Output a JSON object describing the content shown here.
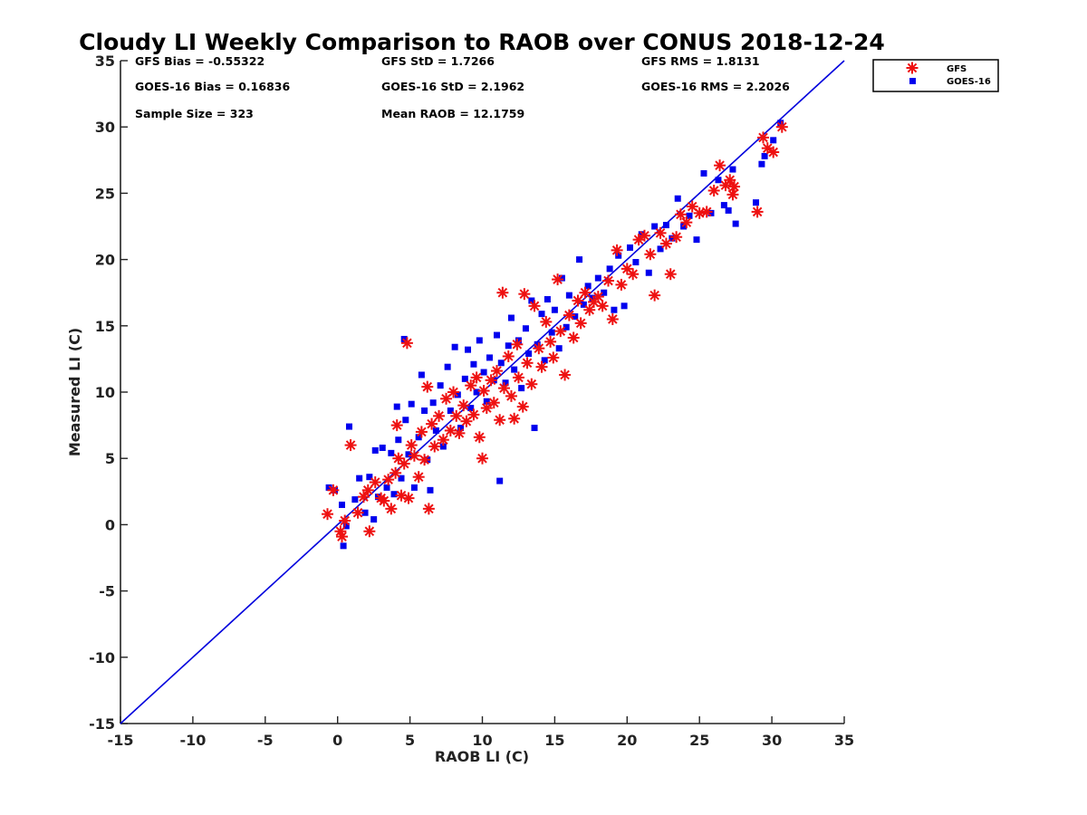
{
  "chart_data": {
    "type": "scatter",
    "title": "Cloudy LI Weekly Comparison to RAOB over CONUS 2018-12-24",
    "xlabel": "RAOB LI (C)",
    "ylabel": "Measured LI (C)",
    "xlim": [
      -15,
      35
    ],
    "ylim": [
      -15,
      35
    ],
    "xticks": [
      "-15",
      "-10",
      "-5",
      "0",
      "5",
      "10",
      "15",
      "20",
      "25",
      "30",
      "35"
    ],
    "yticks": [
      "-15",
      "-10",
      "-5",
      "0",
      "5",
      "10",
      "15",
      "20",
      "25",
      "30",
      "35"
    ],
    "grid": false,
    "legend_position": "outside-top-right",
    "reference_line": {
      "x": [
        -15,
        35
      ],
      "y": [
        -15,
        35
      ],
      "color": "#0000dd"
    },
    "stats": {
      "gfs_bias": "GFS Bias = -0.55322",
      "goes_bias": "GOES-16 Bias = 0.16836",
      "sample_size": "Sample Size = 323",
      "gfs_std": "GFS StD = 1.7266",
      "goes_std": "GOES-16 StD = 2.1962",
      "mean_raob": "Mean RAOB = 12.1759",
      "gfs_rms": "GFS RMS = 1.8131",
      "goes_rms": "GOES-16 RMS = 2.2026"
    },
    "series": [
      {
        "name": "GFS",
        "marker": "asterisk",
        "color": "#ee1111",
        "points": [
          [
            -0.7,
            0.8
          ],
          [
            -0.3,
            2.6
          ],
          [
            0.2,
            -0.5
          ],
          [
            0.3,
            -0.9
          ],
          [
            0.5,
            0.3
          ],
          [
            0.9,
            6.0
          ],
          [
            1.4,
            0.9
          ],
          [
            1.8,
            2.1
          ],
          [
            2.1,
            2.6
          ],
          [
            2.2,
            -0.5
          ],
          [
            2.6,
            3.2
          ],
          [
            3.0,
            2.0
          ],
          [
            3.2,
            1.8
          ],
          [
            3.5,
            3.4
          ],
          [
            3.7,
            1.2
          ],
          [
            4.0,
            3.9
          ],
          [
            4.1,
            7.5
          ],
          [
            4.2,
            5.0
          ],
          [
            4.4,
            2.2
          ],
          [
            4.6,
            4.6
          ],
          [
            4.8,
            13.7
          ],
          [
            4.9,
            2.0
          ],
          [
            5.1,
            6.0
          ],
          [
            5.3,
            5.2
          ],
          [
            5.6,
            3.6
          ],
          [
            5.8,
            7.0
          ],
          [
            6.0,
            4.9
          ],
          [
            6.2,
            10.4
          ],
          [
            6.3,
            1.2
          ],
          [
            6.5,
            7.6
          ],
          [
            6.7,
            5.9
          ],
          [
            7.0,
            8.2
          ],
          [
            7.3,
            6.4
          ],
          [
            7.5,
            9.5
          ],
          [
            7.8,
            7.1
          ],
          [
            8.0,
            10.0
          ],
          [
            8.2,
            8.2
          ],
          [
            8.4,
            6.9
          ],
          [
            8.7,
            9.0
          ],
          [
            8.9,
            7.8
          ],
          [
            9.2,
            10.5
          ],
          [
            9.4,
            8.3
          ],
          [
            9.6,
            11.1
          ],
          [
            9.8,
            6.6
          ],
          [
            10.0,
            5.0
          ],
          [
            10.1,
            10.1
          ],
          [
            10.3,
            8.8
          ],
          [
            10.6,
            10.9
          ],
          [
            10.8,
            9.2
          ],
          [
            11.0,
            11.6
          ],
          [
            11.2,
            7.9
          ],
          [
            11.4,
            17.5
          ],
          [
            11.5,
            10.3
          ],
          [
            11.8,
            12.7
          ],
          [
            12.0,
            9.7
          ],
          [
            12.2,
            8.0
          ],
          [
            12.4,
            13.6
          ],
          [
            12.5,
            11.1
          ],
          [
            12.8,
            8.9
          ],
          [
            12.9,
            17.4
          ],
          [
            13.1,
            12.2
          ],
          [
            13.4,
            10.6
          ],
          [
            13.6,
            16.5
          ],
          [
            13.9,
            13.3
          ],
          [
            14.1,
            11.9
          ],
          [
            14.4,
            15.3
          ],
          [
            14.7,
            13.8
          ],
          [
            14.9,
            12.6
          ],
          [
            15.2,
            18.5
          ],
          [
            15.4,
            14.6
          ],
          [
            15.7,
            11.3
          ],
          [
            16.0,
            15.8
          ],
          [
            16.3,
            14.1
          ],
          [
            16.6,
            16.9
          ],
          [
            16.8,
            15.2
          ],
          [
            17.1,
            17.5
          ],
          [
            17.4,
            16.2
          ],
          [
            17.7,
            16.8
          ],
          [
            18.0,
            17.2
          ],
          [
            18.3,
            16.5
          ],
          [
            18.7,
            18.4
          ],
          [
            19.0,
            15.5
          ],
          [
            19.3,
            20.7
          ],
          [
            19.6,
            18.1
          ],
          [
            20.0,
            19.3
          ],
          [
            20.4,
            18.9
          ],
          [
            20.8,
            21.5
          ],
          [
            21.2,
            21.8
          ],
          [
            21.6,
            20.4
          ],
          [
            21.9,
            17.3
          ],
          [
            22.3,
            22.0
          ],
          [
            22.7,
            21.2
          ],
          [
            23.0,
            18.9
          ],
          [
            23.4,
            21.7
          ],
          [
            23.7,
            23.4
          ],
          [
            24.1,
            22.8
          ],
          [
            24.5,
            24.0
          ],
          [
            25.0,
            23.5
          ],
          [
            25.5,
            23.6
          ],
          [
            26.0,
            25.2
          ],
          [
            26.4,
            27.1
          ],
          [
            26.8,
            25.6
          ],
          [
            27.1,
            26.0
          ],
          [
            27.3,
            24.9
          ],
          [
            27.4,
            25.5
          ],
          [
            29.0,
            23.6
          ],
          [
            29.4,
            29.2
          ],
          [
            29.7,
            28.4
          ],
          [
            30.1,
            28.1
          ],
          [
            30.7,
            30.0
          ]
        ]
      },
      {
        "name": "GOES-16",
        "marker": "square",
        "color": "#0000ee",
        "points": [
          [
            -0.6,
            2.8
          ],
          [
            -0.2,
            2.6
          ],
          [
            0.3,
            1.5
          ],
          [
            0.4,
            -1.6
          ],
          [
            0.6,
            -0.1
          ],
          [
            0.8,
            7.4
          ],
          [
            1.2,
            1.9
          ],
          [
            1.5,
            3.5
          ],
          [
            1.9,
            0.9
          ],
          [
            2.2,
            3.6
          ],
          [
            2.5,
            0.4
          ],
          [
            2.6,
            5.6
          ],
          [
            2.8,
            2.1
          ],
          [
            3.1,
            5.8
          ],
          [
            3.4,
            2.8
          ],
          [
            3.7,
            5.4
          ],
          [
            3.9,
            2.3
          ],
          [
            4.1,
            8.9
          ],
          [
            4.2,
            6.4
          ],
          [
            4.4,
            3.5
          ],
          [
            4.6,
            14.0
          ],
          [
            4.7,
            7.9
          ],
          [
            4.9,
            5.3
          ],
          [
            5.1,
            9.1
          ],
          [
            5.3,
            2.8
          ],
          [
            5.6,
            6.6
          ],
          [
            5.8,
            11.3
          ],
          [
            6.0,
            8.6
          ],
          [
            6.2,
            4.9
          ],
          [
            6.4,
            2.6
          ],
          [
            6.6,
            9.2
          ],
          [
            6.8,
            7.1
          ],
          [
            7.1,
            10.5
          ],
          [
            7.3,
            5.9
          ],
          [
            7.6,
            11.9
          ],
          [
            7.8,
            8.6
          ],
          [
            8.1,
            13.4
          ],
          [
            8.3,
            9.8
          ],
          [
            8.5,
            7.3
          ],
          [
            8.8,
            11.0
          ],
          [
            9.0,
            13.2
          ],
          [
            9.2,
            8.8
          ],
          [
            9.4,
            12.1
          ],
          [
            9.6,
            10.0
          ],
          [
            9.8,
            13.9
          ],
          [
            10.1,
            11.5
          ],
          [
            10.3,
            9.3
          ],
          [
            10.5,
            12.6
          ],
          [
            10.8,
            10.9
          ],
          [
            11.0,
            14.3
          ],
          [
            11.2,
            3.3
          ],
          [
            11.3,
            12.2
          ],
          [
            11.6,
            10.7
          ],
          [
            11.8,
            13.5
          ],
          [
            12.0,
            15.6
          ],
          [
            12.2,
            11.7
          ],
          [
            12.5,
            13.9
          ],
          [
            12.7,
            10.3
          ],
          [
            13.0,
            14.8
          ],
          [
            13.2,
            12.9
          ],
          [
            13.4,
            16.9
          ],
          [
            13.6,
            7.3
          ],
          [
            13.8,
            13.6
          ],
          [
            14.1,
            15.9
          ],
          [
            14.3,
            12.4
          ],
          [
            14.5,
            17.0
          ],
          [
            14.8,
            14.5
          ],
          [
            15.0,
            16.2
          ],
          [
            15.3,
            13.3
          ],
          [
            15.5,
            18.6
          ],
          [
            15.8,
            14.9
          ],
          [
            16.0,
            17.3
          ],
          [
            16.4,
            15.7
          ],
          [
            16.7,
            20.0
          ],
          [
            17.0,
            16.6
          ],
          [
            17.3,
            18.0
          ],
          [
            17.6,
            17.1
          ],
          [
            18.0,
            18.6
          ],
          [
            18.4,
            17.5
          ],
          [
            18.8,
            19.3
          ],
          [
            19.1,
            16.2
          ],
          [
            19.4,
            20.3
          ],
          [
            19.8,
            16.5
          ],
          [
            20.2,
            20.9
          ],
          [
            20.6,
            19.8
          ],
          [
            21.0,
            21.9
          ],
          [
            21.5,
            19.0
          ],
          [
            21.9,
            22.5
          ],
          [
            22.3,
            20.8
          ],
          [
            22.7,
            22.6
          ],
          [
            23.1,
            21.6
          ],
          [
            23.5,
            24.6
          ],
          [
            23.9,
            22.5
          ],
          [
            24.3,
            23.3
          ],
          [
            24.8,
            21.5
          ],
          [
            25.3,
            26.5
          ],
          [
            25.8,
            23.5
          ],
          [
            26.3,
            26.0
          ],
          [
            26.7,
            24.1
          ],
          [
            27.0,
            23.7
          ],
          [
            27.3,
            26.8
          ],
          [
            27.5,
            22.7
          ],
          [
            28.9,
            24.3
          ],
          [
            29.3,
            27.2
          ],
          [
            29.5,
            27.8
          ],
          [
            30.1,
            29.0
          ],
          [
            30.6,
            30.3
          ]
        ]
      }
    ]
  }
}
